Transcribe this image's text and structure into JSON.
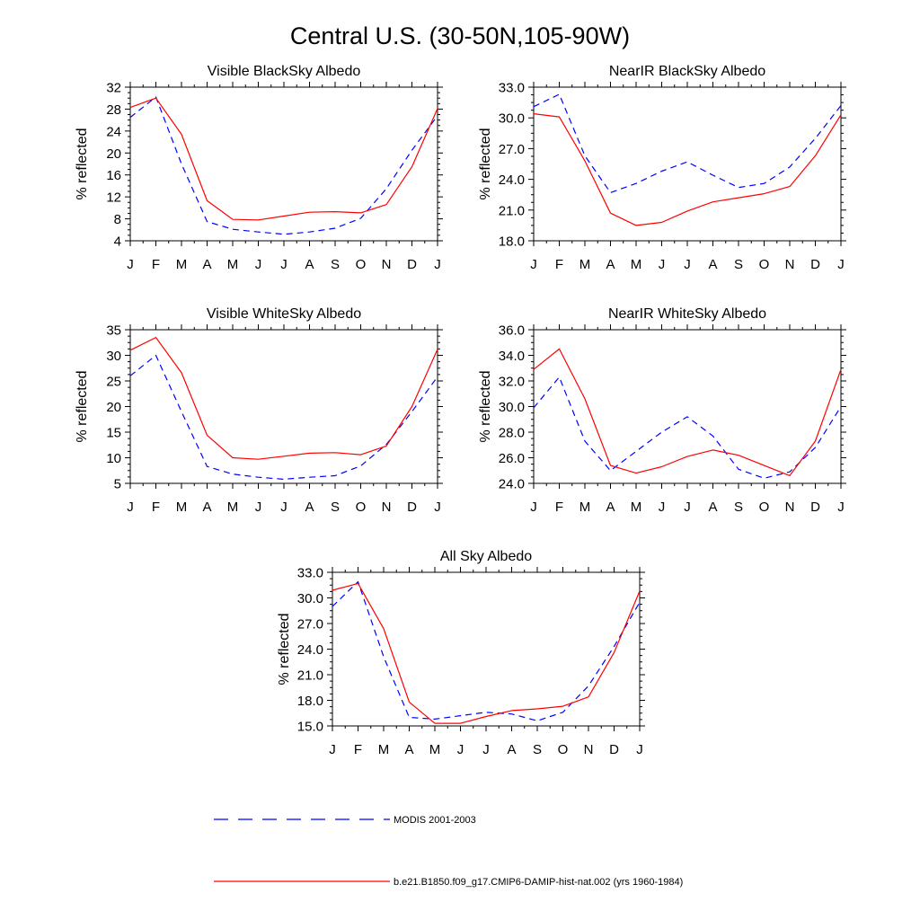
{
  "title": "Central U.S. (30-50N,105-90W)",
  "colors": {
    "modis": "#0000ff",
    "model": "#ff0000"
  },
  "legend": {
    "entries": [
      {
        "label": "MODIS 2001-2003",
        "color": "#0000ff",
        "style": "dashed"
      },
      {
        "label": "b.e21.B1850.f09_g17.CMIP6-DAMIP-hist-nat.002 (yrs 1960-1984)",
        "color": "#ff0000",
        "style": "solid"
      }
    ]
  },
  "chart_data": [
    {
      "type": "line",
      "title": "Visible BlackSky Albedo",
      "ylabel": "% reflected",
      "categories": [
        "J",
        "F",
        "M",
        "A",
        "M",
        "J",
        "J",
        "A",
        "S",
        "O",
        "N",
        "D",
        "J"
      ],
      "ylim": [
        4,
        32
      ],
      "yticks": [
        "4",
        "8",
        "12",
        "16",
        "20",
        "24",
        "28",
        "32"
      ],
      "series": [
        {
          "key": "modis",
          "values": [
            26.5,
            30.2,
            18.0,
            7.5,
            6.1,
            5.6,
            5.2,
            5.6,
            6.3,
            8.1,
            13.5,
            20.5,
            26.8
          ]
        },
        {
          "key": "model",
          "values": [
            28.3,
            30.0,
            23.4,
            11.3,
            7.9,
            7.8,
            8.5,
            9.2,
            9.3,
            9.1,
            10.6,
            17.5,
            28.1
          ]
        }
      ]
    },
    {
      "type": "line",
      "title": "NearIR BlackSky Albedo",
      "ylabel": "% reflected",
      "categories": [
        "J",
        "F",
        "M",
        "A",
        "M",
        "J",
        "J",
        "A",
        "S",
        "O",
        "N",
        "D",
        "J"
      ],
      "ylim": [
        18,
        33
      ],
      "yticks": [
        "18.0",
        "21.0",
        "24.0",
        "27.0",
        "30.0",
        "33.0"
      ],
      "series": [
        {
          "key": "modis",
          "values": [
            31.1,
            32.3,
            26.3,
            22.7,
            23.6,
            24.8,
            25.7,
            24.4,
            23.2,
            23.6,
            25.2,
            28.0,
            31.2
          ]
        },
        {
          "key": "model",
          "values": [
            30.4,
            30.1,
            25.8,
            20.7,
            19.5,
            19.8,
            20.9,
            21.8,
            22.2,
            22.6,
            23.3,
            26.3,
            30.3
          ]
        }
      ]
    },
    {
      "type": "line",
      "title": "Visible WhiteSky Albedo",
      "ylabel": "% reflected",
      "categories": [
        "J",
        "F",
        "M",
        "A",
        "M",
        "J",
        "J",
        "A",
        "S",
        "O",
        "N",
        "D",
        "J"
      ],
      "ylim": [
        5,
        35
      ],
      "yticks": [
        "5",
        "10",
        "15",
        "20",
        "25",
        "30",
        "35"
      ],
      "series": [
        {
          "key": "modis",
          "values": [
            26.0,
            30.0,
            19.0,
            8.3,
            6.8,
            6.2,
            5.8,
            6.2,
            6.5,
            8.4,
            12.6,
            19.0,
            25.8
          ]
        },
        {
          "key": "model",
          "values": [
            31.0,
            33.5,
            26.6,
            14.4,
            10.0,
            9.7,
            10.3,
            10.9,
            11.0,
            10.6,
            12.3,
            20.0,
            31.2
          ]
        }
      ]
    },
    {
      "type": "line",
      "title": "NearIR WhiteSky Albedo",
      "ylabel": "% reflected",
      "categories": [
        "J",
        "F",
        "M",
        "A",
        "M",
        "J",
        "J",
        "A",
        "S",
        "O",
        "N",
        "D",
        "J"
      ],
      "ylim": [
        24,
        36
      ],
      "yticks": [
        "24.0",
        "26.0",
        "28.0",
        "30.0",
        "32.0",
        "34.0",
        "36.0"
      ],
      "series": [
        {
          "key": "modis",
          "values": [
            29.9,
            32.3,
            27.3,
            25.0,
            26.5,
            28.0,
            29.2,
            27.7,
            25.1,
            24.4,
            24.9,
            26.8,
            30.0
          ]
        },
        {
          "key": "model",
          "values": [
            32.9,
            34.5,
            30.6,
            25.4,
            24.8,
            25.3,
            26.1,
            26.6,
            26.2,
            25.4,
            24.6,
            27.3,
            32.9
          ]
        }
      ]
    },
    {
      "type": "line",
      "title": "All Sky Albedo",
      "ylabel": "% reflected",
      "categories": [
        "J",
        "F",
        "M",
        "A",
        "M",
        "J",
        "J",
        "A",
        "S",
        "O",
        "N",
        "D",
        "J"
      ],
      "ylim": [
        15,
        33
      ],
      "yticks": [
        "15.0",
        "18.0",
        "21.0",
        "24.0",
        "27.0",
        "30.0",
        "33.0"
      ],
      "series": [
        {
          "key": "modis",
          "values": [
            29.0,
            31.9,
            23.1,
            16.0,
            15.8,
            16.2,
            16.6,
            16.4,
            15.6,
            16.6,
            19.7,
            24.3,
            29.5
          ]
        },
        {
          "key": "model",
          "values": [
            30.9,
            31.7,
            26.4,
            17.8,
            15.3,
            15.3,
            16.1,
            16.8,
            17.0,
            17.3,
            18.4,
            23.6,
            30.8
          ]
        }
      ]
    }
  ]
}
